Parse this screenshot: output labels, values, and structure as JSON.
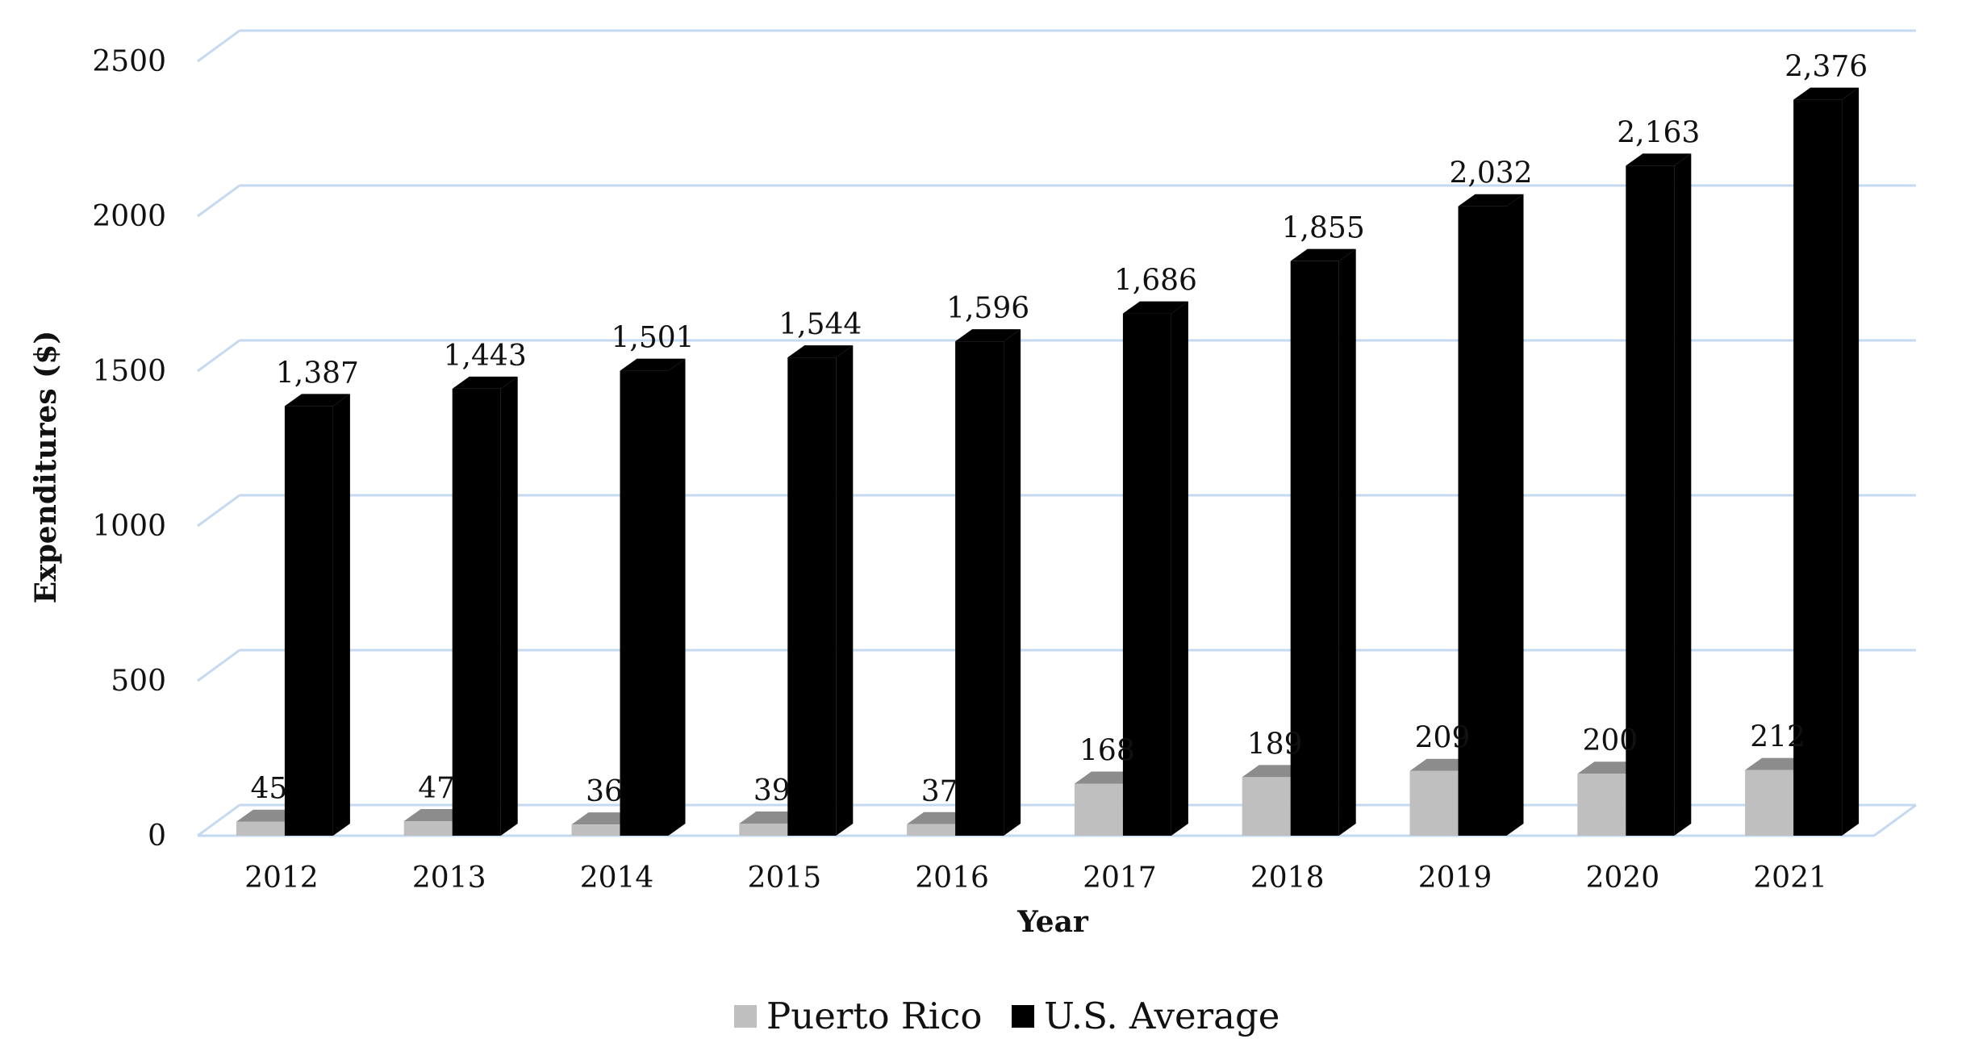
{
  "chart_data": {
    "type": "bar",
    "title": "",
    "xlabel": "Year",
    "ylabel": "Expenditures ($)",
    "categories": [
      "2012",
      "2013",
      "2014",
      "2015",
      "2016",
      "2017",
      "2018",
      "2019",
      "2020",
      "2021"
    ],
    "series": [
      {
        "name": "Puerto Rico",
        "values": [
          45,
          47,
          36,
          39,
          37,
          168,
          189,
          209,
          200,
          212
        ],
        "labels": [
          "45",
          "47",
          "36",
          "39",
          "37",
          "168",
          "189",
          "209",
          "200",
          "212"
        ],
        "color": "#bfbfbf"
      },
      {
        "name": "U.S. Average",
        "values": [
          1387,
          1443,
          1501,
          1544,
          1596,
          1686,
          1855,
          2032,
          2163,
          2376
        ],
        "labels": [
          "1,387",
          "1,443",
          "1,501",
          "1,544",
          "1,596",
          "1,686",
          "1,855",
          "2,032",
          "2,163",
          "2,376"
        ],
        "color": "#000000"
      }
    ],
    "y_ticks": [
      "0",
      "500",
      "1000",
      "1500",
      "2000",
      "2500"
    ],
    "ylim": [
      0,
      2500
    ],
    "grid": true,
    "gridline_color": "#c5d9f1",
    "three_d": true,
    "legend_position": "bottom"
  }
}
